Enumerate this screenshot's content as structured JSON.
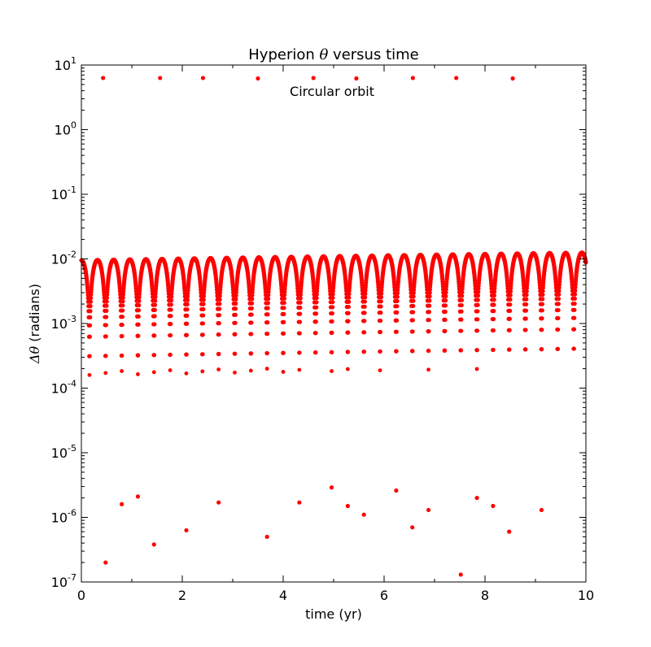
{
  "chart_data": {
    "type": "scatter",
    "title_prefix": "Hyperion ",
    "title_symbol": "θ",
    "title_suffix": " versus time",
    "xlabel": "time (yr)",
    "ylabel_symbol": "Δθ",
    "ylabel_suffix": " (radians)",
    "annotation": "Circular orbit",
    "xlim": [
      0,
      10
    ],
    "ylim": [
      1e-07,
      10
    ],
    "yscale": "log",
    "grid": false,
    "marker_color": "#ff0000",
    "x_ticks": [
      "0",
      "2",
      "4",
      "6",
      "8",
      "10"
    ],
    "y_ticks": [
      {
        "base": "10",
        "exp": "-7"
      },
      {
        "base": "10",
        "exp": "-6"
      },
      {
        "base": "10",
        "exp": "-5"
      },
      {
        "base": "10",
        "exp": "-4"
      },
      {
        "base": "10",
        "exp": "-3"
      },
      {
        "base": "10",
        "exp": "-2"
      },
      {
        "base": "10",
        "exp": "-1"
      },
      {
        "base": "10",
        "exp": "0"
      },
      {
        "base": "10",
        "exp": "1"
      }
    ],
    "series": [
      {
        "oscillation_dips_x": [
          0.16,
          0.48,
          0.8,
          1.12,
          1.44,
          1.76,
          2.08,
          2.4,
          2.72,
          3.04,
          3.36,
          3.68,
          4.0,
          4.32,
          4.64,
          4.96,
          5.28,
          5.6,
          5.92,
          6.24,
          6.56,
          6.88,
          7.2,
          7.52,
          7.84,
          8.16,
          8.48,
          8.8,
          9.12,
          9.44,
          9.76
        ],
        "envelope_max_y_start": 0.0095,
        "envelope_max_y_end": 0.0125,
        "outliers_high": [
          {
            "x": 0.43,
            "y": 6.3
          },
          {
            "x": 1.56,
            "y": 6.3
          },
          {
            "x": 2.41,
            "y": 6.3
          },
          {
            "x": 3.5,
            "y": 6.2
          },
          {
            "x": 4.6,
            "y": 6.3
          },
          {
            "x": 5.45,
            "y": 6.2
          },
          {
            "x": 6.57,
            "y": 6.3
          },
          {
            "x": 7.43,
            "y": 6.3
          },
          {
            "x": 8.55,
            "y": 6.2
          }
        ],
        "outliers_low": [
          {
            "x": 0.48,
            "y": 2e-07
          },
          {
            "x": 0.8,
            "y": 1.6e-06
          },
          {
            "x": 1.12,
            "y": 2.1e-06
          },
          {
            "x": 1.44,
            "y": 3.8e-07
          },
          {
            "x": 2.08,
            "y": 6.3e-07
          },
          {
            "x": 2.72,
            "y": 1.7e-06
          },
          {
            "x": 3.68,
            "y": 5e-07
          },
          {
            "x": 4.32,
            "y": 1.7e-06
          },
          {
            "x": 4.96,
            "y": 2.9e-06
          },
          {
            "x": 5.28,
            "y": 1.5e-06
          },
          {
            "x": 5.6,
            "y": 1.1e-06
          },
          {
            "x": 6.24,
            "y": 2.6e-06
          },
          {
            "x": 6.56,
            "y": 7e-07
          },
          {
            "x": 6.88,
            "y": 1.3e-06
          },
          {
            "x": 7.52,
            "y": 1.3e-07
          },
          {
            "x": 7.84,
            "y": 2e-06
          },
          {
            "x": 8.16,
            "y": 1.5e-06
          },
          {
            "x": 8.48,
            "y": 6e-07
          },
          {
            "x": 9.12,
            "y": 1.3e-06
          }
        ]
      }
    ]
  }
}
